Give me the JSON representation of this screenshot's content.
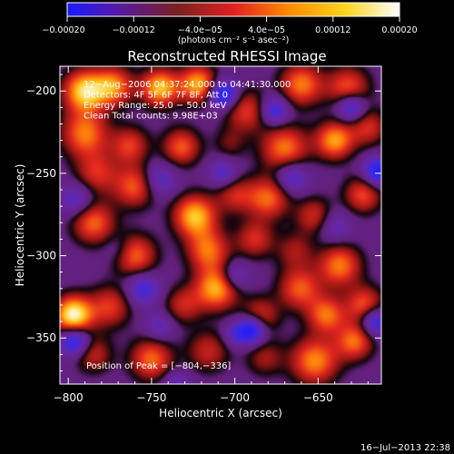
{
  "chart_data": {
    "type": "heatmap",
    "title": "Reconstructed RHESSI Image",
    "xlabel": "Heliocentric X (arcsec)",
    "ylabel": "Heliocentric Y (arcsec)",
    "xlim": [
      -805,
      -612
    ],
    "ylim": [
      -378,
      -185
    ],
    "x_ticks": [
      -800,
      -750,
      -700,
      -650
    ],
    "x_tick_labels": [
      "−800",
      "−750",
      "−700",
      "−650"
    ],
    "y_ticks": [
      -200,
      -250,
      -300,
      -350
    ],
    "y_tick_labels": [
      "−200",
      "−250",
      "−300",
      "−350"
    ],
    "colorbar": {
      "range": [
        -0.0002,
        0.0002
      ],
      "ticks": [
        -0.0002,
        -0.00012,
        -4e-05,
        4e-05,
        0.00012,
        0.0002
      ],
      "tick_labels": [
        "−0.00020",
        "−0.00012",
        "−4.0e−05",
        "4.0e−05",
        "0.00012",
        "0.00020"
      ],
      "units_label": "(photons cm⁻² s⁻¹ asec⁻²)",
      "colors": [
        "#1a1aff",
        "#5a1a9a",
        "#7a2020",
        "#e02020",
        "#ff8a00",
        "#ffd21a",
        "#ffffff"
      ]
    },
    "annotations": [
      "12−Aug−2006 04:37:24.000 to 04:41:30.000",
      "Detectors: 4F 5F 6F 7F 8F, Att 0",
      "Energy Range: 25.0 − 50.0 keV",
      "Clean     Total counts: 9.98E+03"
    ],
    "peak_label": "Position of Peak = [−804,−336]",
    "peak": {
      "x": -804,
      "y": -336
    },
    "blobs": [
      {
        "x": -790,
        "y": -200,
        "s": 9,
        "a": 1.1
      },
      {
        "x": -772,
        "y": -197,
        "s": 8,
        "a": 1.0
      },
      {
        "x": -745,
        "y": -198,
        "s": 8,
        "a": 1.0
      },
      {
        "x": -722,
        "y": -196,
        "s": 8,
        "a": 0.95
      },
      {
        "x": -693,
        "y": -212,
        "s": 9,
        "a": 0.6
      },
      {
        "x": -660,
        "y": -196,
        "s": 9,
        "a": 0.8
      },
      {
        "x": -632,
        "y": -198,
        "s": 9,
        "a": 0.7
      },
      {
        "x": -620,
        "y": -222,
        "s": 8,
        "a": 0.55
      },
      {
        "x": -790,
        "y": -226,
        "s": 10,
        "a": 0.8
      },
      {
        "x": -763,
        "y": -233,
        "s": 8,
        "a": 0.6
      },
      {
        "x": -732,
        "y": -234,
        "s": 8,
        "a": 0.7
      },
      {
        "x": -703,
        "y": -232,
        "s": 7,
        "a": 0.3
      },
      {
        "x": -670,
        "y": -235,
        "s": 10,
        "a": 0.8
      },
      {
        "x": -640,
        "y": -230,
        "s": 8,
        "a": 0.9
      },
      {
        "x": -783,
        "y": -250,
        "s": 9,
        "a": 0.55
      },
      {
        "x": -760,
        "y": -258,
        "s": 9,
        "a": 0.7
      },
      {
        "x": -724,
        "y": -276,
        "s": 9,
        "a": 1.0
      },
      {
        "x": -700,
        "y": -263,
        "s": 8,
        "a": 0.5
      },
      {
        "x": -680,
        "y": -265,
        "s": 9,
        "a": 0.75
      },
      {
        "x": -652,
        "y": -276,
        "s": 8,
        "a": 0.55
      },
      {
        "x": -623,
        "y": -263,
        "s": 8,
        "a": 0.65
      },
      {
        "x": -785,
        "y": -280,
        "s": 9,
        "a": 0.75
      },
      {
        "x": -760,
        "y": -300,
        "s": 9,
        "a": 0.75
      },
      {
        "x": -716,
        "y": -297,
        "s": 9,
        "a": 0.75
      },
      {
        "x": -688,
        "y": -290,
        "s": 8,
        "a": 0.55
      },
      {
        "x": -664,
        "y": -297,
        "s": 8,
        "a": 0.4
      },
      {
        "x": -637,
        "y": -306,
        "s": 9,
        "a": 0.8
      },
      {
        "x": -797,
        "y": -336,
        "s": 8,
        "a": 1.25
      },
      {
        "x": -775,
        "y": -331,
        "s": 9,
        "a": 0.6
      },
      {
        "x": -731,
        "y": -330,
        "s": 8,
        "a": 0.5
      },
      {
        "x": -711,
        "y": -320,
        "s": 9,
        "a": 0.95
      },
      {
        "x": -685,
        "y": -337,
        "s": 8,
        "a": 0.6
      },
      {
        "x": -661,
        "y": -320,
        "s": 9,
        "a": 0.7
      },
      {
        "x": -645,
        "y": -336,
        "s": 8,
        "a": 0.75
      },
      {
        "x": -622,
        "y": -330,
        "s": 8,
        "a": 0.7
      },
      {
        "x": -785,
        "y": -360,
        "s": 8,
        "a": 0.5
      },
      {
        "x": -750,
        "y": -363,
        "s": 9,
        "a": 0.75
      },
      {
        "x": -716,
        "y": -358,
        "s": 9,
        "a": 0.5
      },
      {
        "x": -682,
        "y": -362,
        "s": 8,
        "a": 0.4
      },
      {
        "x": -652,
        "y": -364,
        "s": 10,
        "a": 0.85
      },
      {
        "x": -628,
        "y": -352,
        "s": 8,
        "a": 0.75
      },
      {
        "x": -770,
        "y": -197,
        "s": 7,
        "a": -0.2
      },
      {
        "x": -707,
        "y": -202,
        "s": 6,
        "a": -1.0
      },
      {
        "x": -676,
        "y": -212,
        "s": 6,
        "a": -0.7
      },
      {
        "x": -630,
        "y": -210,
        "s": 6,
        "a": -0.8
      },
      {
        "x": -614,
        "y": -249,
        "s": 6,
        "a": -0.9
      },
      {
        "x": -745,
        "y": -254,
        "s": 7,
        "a": -0.5
      },
      {
        "x": -707,
        "y": -250,
        "s": 6,
        "a": -0.5
      },
      {
        "x": -666,
        "y": -252,
        "s": 7,
        "a": -0.6
      },
      {
        "x": -795,
        "y": -266,
        "s": 7,
        "a": -0.5
      },
      {
        "x": -640,
        "y": -282,
        "s": 7,
        "a": -0.4
      },
      {
        "x": -770,
        "y": -296,
        "s": 6,
        "a": -0.25
      },
      {
        "x": -700,
        "y": -312,
        "s": 6,
        "a": -0.5
      },
      {
        "x": -755,
        "y": -320,
        "s": 7,
        "a": -0.6
      },
      {
        "x": -690,
        "y": -345,
        "s": 6,
        "a": -1.1
      },
      {
        "x": -700,
        "y": -348,
        "s": 5,
        "a": -0.4
      },
      {
        "x": -796,
        "y": -352,
        "s": 6,
        "a": -0.9
      },
      {
        "x": -745,
        "y": -343,
        "s": 6,
        "a": -0.4
      },
      {
        "x": -616,
        "y": -340,
        "s": 6,
        "a": -0.8
      },
      {
        "x": -735,
        "y": -378,
        "s": 6,
        "a": -0.4
      }
    ]
  },
  "footer": {
    "date_label": "16−Jul−2013 22:38"
  }
}
